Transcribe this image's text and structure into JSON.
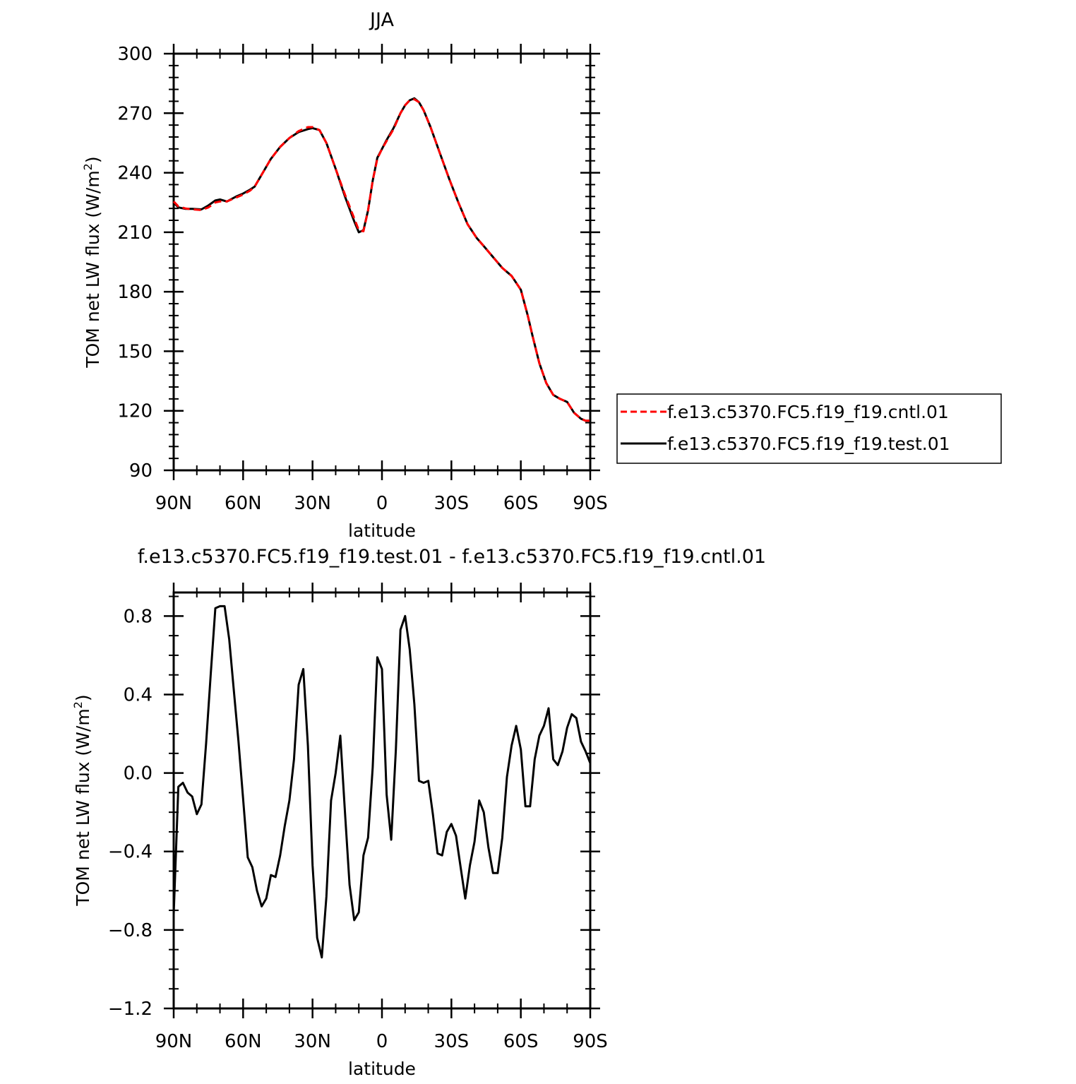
{
  "chart_data": [
    {
      "type": "line",
      "title": "JJA",
      "xlabel": "latitude",
      "ylabel": "TOM net LW flux (W/m",
      "ylabel_sup": "2",
      "ylabel_close": ")",
      "xlim": [
        90,
        -90
      ],
      "ylim": [
        90,
        300
      ],
      "x_ticks": [
        90,
        60,
        30,
        0,
        -30,
        -60,
        -90
      ],
      "x_tick_labels": [
        "90N",
        "60N",
        "30N",
        "0",
        "30S",
        "60S",
        "90S"
      ],
      "y_ticks": [
        90,
        120,
        150,
        180,
        210,
        240,
        270,
        300
      ],
      "y_tick_labels": [
        "90",
        "120",
        "150",
        "180",
        "210",
        "240",
        "270",
        "300"
      ],
      "legend": "right",
      "series": [
        {
          "name": "f.e13.c5370.FC5.f19_f19.cntl.01",
          "color": "#ff0000",
          "style": "dashed",
          "x": [
            90,
            88,
            85,
            82,
            78,
            75,
            72,
            70,
            67,
            63,
            60,
            57,
            55,
            52,
            48,
            44,
            40,
            36,
            32,
            30,
            27,
            24,
            20,
            16,
            12,
            10,
            8,
            6,
            4,
            2,
            0,
            -2,
            -5,
            -8,
            -10,
            -12,
            -14,
            -16,
            -18,
            -21,
            -25,
            -29,
            -33,
            -37,
            -41,
            -44,
            -48,
            -52,
            -56,
            -60,
            -63,
            -65,
            -68,
            -71,
            -74,
            -77,
            -80,
            -83,
            -86,
            -88,
            -90
          ],
          "y": [
            225.5,
            223,
            222,
            221.5,
            221.2,
            222.5,
            225,
            225.5,
            225.5,
            227.5,
            229,
            231,
            233,
            239,
            247,
            253,
            257.5,
            261,
            263,
            263,
            261.5,
            255,
            242,
            229,
            217,
            211,
            210.5,
            221,
            236,
            247,
            252,
            256,
            262,
            270,
            274,
            276.5,
            277,
            275.5,
            271.5,
            263,
            250,
            237,
            225,
            214,
            207,
            203,
            197.5,
            192,
            188,
            181,
            168,
            158,
            144,
            134,
            128,
            126,
            124.5,
            119,
            116,
            115,
            115
          ]
        },
        {
          "name": "f.e13.c5370.FC5.f19_f19.test.01",
          "color": "#000000",
          "style": "solid",
          "x": [
            90,
            88,
            85,
            82,
            78,
            75,
            72,
            70,
            67,
            63,
            60,
            57,
            55,
            52,
            48,
            44,
            40,
            36,
            32,
            30,
            27,
            24,
            20,
            16,
            12,
            10,
            8,
            6,
            4,
            2,
            0,
            -2,
            -5,
            -8,
            -10,
            -12,
            -14,
            -16,
            -18,
            -21,
            -25,
            -29,
            -33,
            -37,
            -41,
            -44,
            -48,
            -52,
            -56,
            -60,
            -63,
            -65,
            -68,
            -71,
            -74,
            -77,
            -80,
            -83,
            -86,
            -88,
            -90
          ],
          "y": [
            225,
            222.5,
            221.8,
            221.8,
            221.5,
            223.5,
            226,
            226.5,
            225.5,
            228,
            229.5,
            231.5,
            233,
            239,
            247,
            253,
            257.5,
            260.5,
            262,
            262.5,
            261.5,
            255,
            242,
            228,
            215.5,
            210,
            211,
            221,
            236,
            247.5,
            252,
            256.5,
            262.5,
            270,
            274,
            276.5,
            277.5,
            275.5,
            271.5,
            263,
            250,
            237,
            225,
            214,
            207,
            203,
            197.5,
            192,
            188,
            181,
            168,
            158,
            144,
            134,
            128,
            126,
            124.5,
            119,
            116,
            115,
            115
          ]
        }
      ]
    },
    {
      "type": "line",
      "title": "f.e13.c5370.FC5.f19_f19.test.01 - f.e13.c5370.FC5.f19_f19.cntl.01",
      "xlabel": "latitude",
      "ylabel": "TOM net LW flux (W/m",
      "ylabel_sup": "2",
      "ylabel_close": ")",
      "xlim": [
        90,
        -90
      ],
      "ylim": [
        -1.2,
        0.92
      ],
      "x_ticks": [
        90,
        60,
        30,
        0,
        -30,
        -60,
        -90
      ],
      "x_tick_labels": [
        "90N",
        "60N",
        "30N",
        "0",
        "30S",
        "60S",
        "90S"
      ],
      "y_ticks": [
        0.8,
        0.4,
        0.0,
        -0.4,
        -0.8,
        -1.2
      ],
      "y_tick_labels": [
        "0.8",
        "0.4",
        "0.0",
        "−0.4",
        "−0.8",
        "−1.2"
      ],
      "series": [
        {
          "name": "",
          "color": "#000000",
          "style": "solid",
          "x": [
            90,
            88,
            86,
            84,
            82,
            80,
            78,
            76,
            74,
            72,
            70,
            68,
            66,
            64,
            62,
            60,
            58,
            56,
            54,
            52,
            50,
            48,
            46,
            44,
            42,
            40,
            38,
            36,
            34,
            32,
            30,
            28,
            26,
            24,
            22,
            20,
            18,
            16,
            14,
            12,
            10,
            8,
            6,
            4,
            2,
            0,
            -2,
            -4,
            -6,
            -8,
            -10,
            -12,
            -14,
            -16,
            -18,
            -20,
            -22,
            -24,
            -26,
            -28,
            -30,
            -32,
            -34,
            -36,
            -38,
            -40,
            -42,
            -44,
            -46,
            -48,
            -50,
            -52,
            -54,
            -56,
            -58,
            -60,
            -62,
            -64,
            -66,
            -68,
            -70,
            -72,
            -74,
            -76,
            -78,
            -80,
            -82,
            -84,
            -86,
            -88,
            -90
          ],
          "y": [
            -0.72,
            -0.07,
            -0.05,
            -0.1,
            -0.12,
            -0.21,
            -0.16,
            0.15,
            0.5,
            0.84,
            0.85,
            0.85,
            0.68,
            0.42,
            0.16,
            -0.13,
            -0.43,
            -0.48,
            -0.6,
            -0.68,
            -0.64,
            -0.52,
            -0.53,
            -0.42,
            -0.27,
            -0.14,
            0.07,
            0.45,
            0.53,
            0.14,
            -0.47,
            -0.84,
            -0.94,
            -0.63,
            -0.14,
            0.0,
            0.19,
            -0.2,
            -0.57,
            -0.75,
            -0.71,
            -0.42,
            -0.33,
            0.03,
            0.59,
            0.53,
            -0.11,
            -0.34,
            0.12,
            0.73,
            0.8,
            0.63,
            0.35,
            -0.04,
            -0.05,
            -0.04,
            -0.21,
            -0.41,
            -0.42,
            -0.3,
            -0.26,
            -0.32,
            -0.48,
            -0.64,
            -0.47,
            -0.35,
            -0.14,
            -0.2,
            -0.38,
            -0.51,
            -0.51,
            -0.33,
            -0.02,
            0.14,
            0.24,
            0.12,
            -0.17,
            -0.17,
            0.07,
            0.19,
            0.24,
            0.33,
            0.07,
            0.04,
            0.11,
            0.23,
            0.3,
            0.28,
            0.16,
            0.11,
            0.05
          ]
        }
      ]
    }
  ]
}
